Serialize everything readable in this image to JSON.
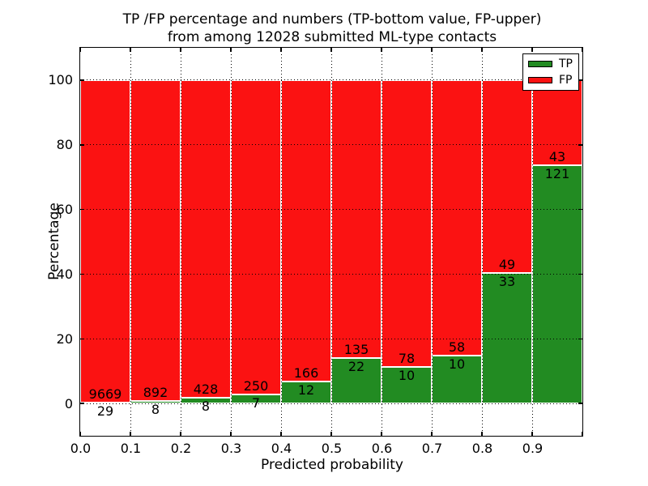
{
  "chart_data": {
    "type": "bar",
    "stacked": true,
    "orientation": "vertical",
    "title_line1": "TP /FP percentage and numbers (TP-bottom value, FP-upper)",
    "title_line2": "from among 12028 submitted ML-type contacts",
    "xlabel": "Predicted probability",
    "ylabel": "Percentage",
    "total_contacts": 12028,
    "bin_edges": [
      0.0,
      0.1,
      0.2,
      0.3,
      0.4,
      0.5,
      0.6,
      0.7,
      0.8,
      0.9,
      1.0
    ],
    "series": [
      {
        "name": "TP",
        "color": "#228b22",
        "counts": [
          29,
          8,
          8,
          7,
          12,
          22,
          10,
          10,
          33,
          121
        ]
      },
      {
        "name": "FP",
        "color": "#fb1212",
        "counts": [
          9669,
          892,
          428,
          250,
          166,
          135,
          78,
          58,
          49,
          43
        ]
      }
    ],
    "value_labels_note": "counts printed at TP/FP boundary: FP count above line, TP count below line",
    "y_unit": "percent of bin total",
    "x_tick_labels": [
      "0.0",
      "0.1",
      "0.2",
      "0.3",
      "0.4",
      "0.5",
      "0.6",
      "0.7",
      "0.8",
      "0.9"
    ],
    "y_tick_labels": [
      "0",
      "20",
      "40",
      "60",
      "80",
      "100"
    ],
    "y_tick_values": [
      0,
      20,
      40,
      60,
      80,
      100
    ],
    "xlim": [
      0.0,
      1.0
    ],
    "ylim": [
      -10,
      110
    ],
    "grid": "dotted black on both axes",
    "bar_edge_color": "#ffffff",
    "legend": {
      "position": "upper-right",
      "entries": [
        {
          "label": "TP",
          "color": "#228b22"
        },
        {
          "label": "FP",
          "color": "#fb1212"
        }
      ]
    }
  }
}
